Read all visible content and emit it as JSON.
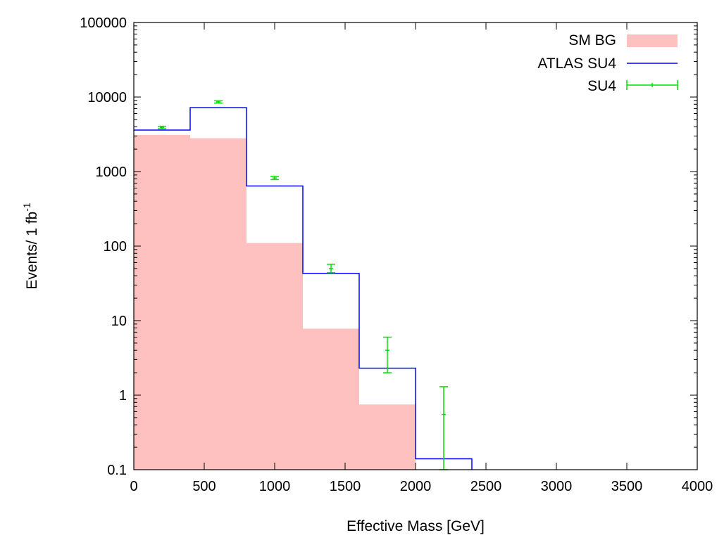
{
  "chart_data": {
    "type": "bar",
    "xlabel": "Effective Mass [GeV]",
    "ylabel": "Events/ 1 fb",
    "ylabel_sup": "-1",
    "xlim": [
      0,
      4000
    ],
    "ylim": [
      0.1,
      100000
    ],
    "yscale": "log",
    "x_ticks": [
      0,
      500,
      1000,
      1500,
      2000,
      2500,
      3000,
      3500,
      4000
    ],
    "x_tick_labels": [
      "0",
      "500",
      "1000",
      "1500",
      "2000",
      "2500",
      "3000",
      "3500",
      "4000"
    ],
    "y_ticks": [
      0.1,
      1,
      10,
      100,
      1000,
      10000,
      100000
    ],
    "y_tick_labels": [
      "0.1",
      "1",
      "10",
      "100",
      "1000",
      "10000",
      "100000"
    ],
    "grid": false,
    "legend_position": "top-right",
    "bin_edges": [
      0,
      400,
      800,
      1200,
      1600,
      2000,
      2400
    ],
    "series": [
      {
        "name": "SM BG",
        "style": "filled-histogram",
        "color": "#ffc0c0",
        "values": [
          3100,
          2800,
          110,
          7.8,
          0.75,
          0.1
        ]
      },
      {
        "name": "ATLAS SU4",
        "style": "step-line",
        "color": "#0000ff",
        "values": [
          3600,
          7200,
          640,
          43,
          2.3,
          0.14
        ]
      },
      {
        "name": "SU4",
        "style": "points-with-error-bars",
        "color": "#00e000",
        "x": [
          200,
          600,
          1000,
          1400,
          1800,
          2200
        ],
        "y": [
          3900,
          8600,
          820,
          50,
          4,
          0.55
        ],
        "y_low": [
          3750,
          8300,
          780,
          44,
          2,
          0.1
        ],
        "y_high": [
          4050,
          8900,
          860,
          57,
          6,
          1.3
        ]
      }
    ]
  }
}
